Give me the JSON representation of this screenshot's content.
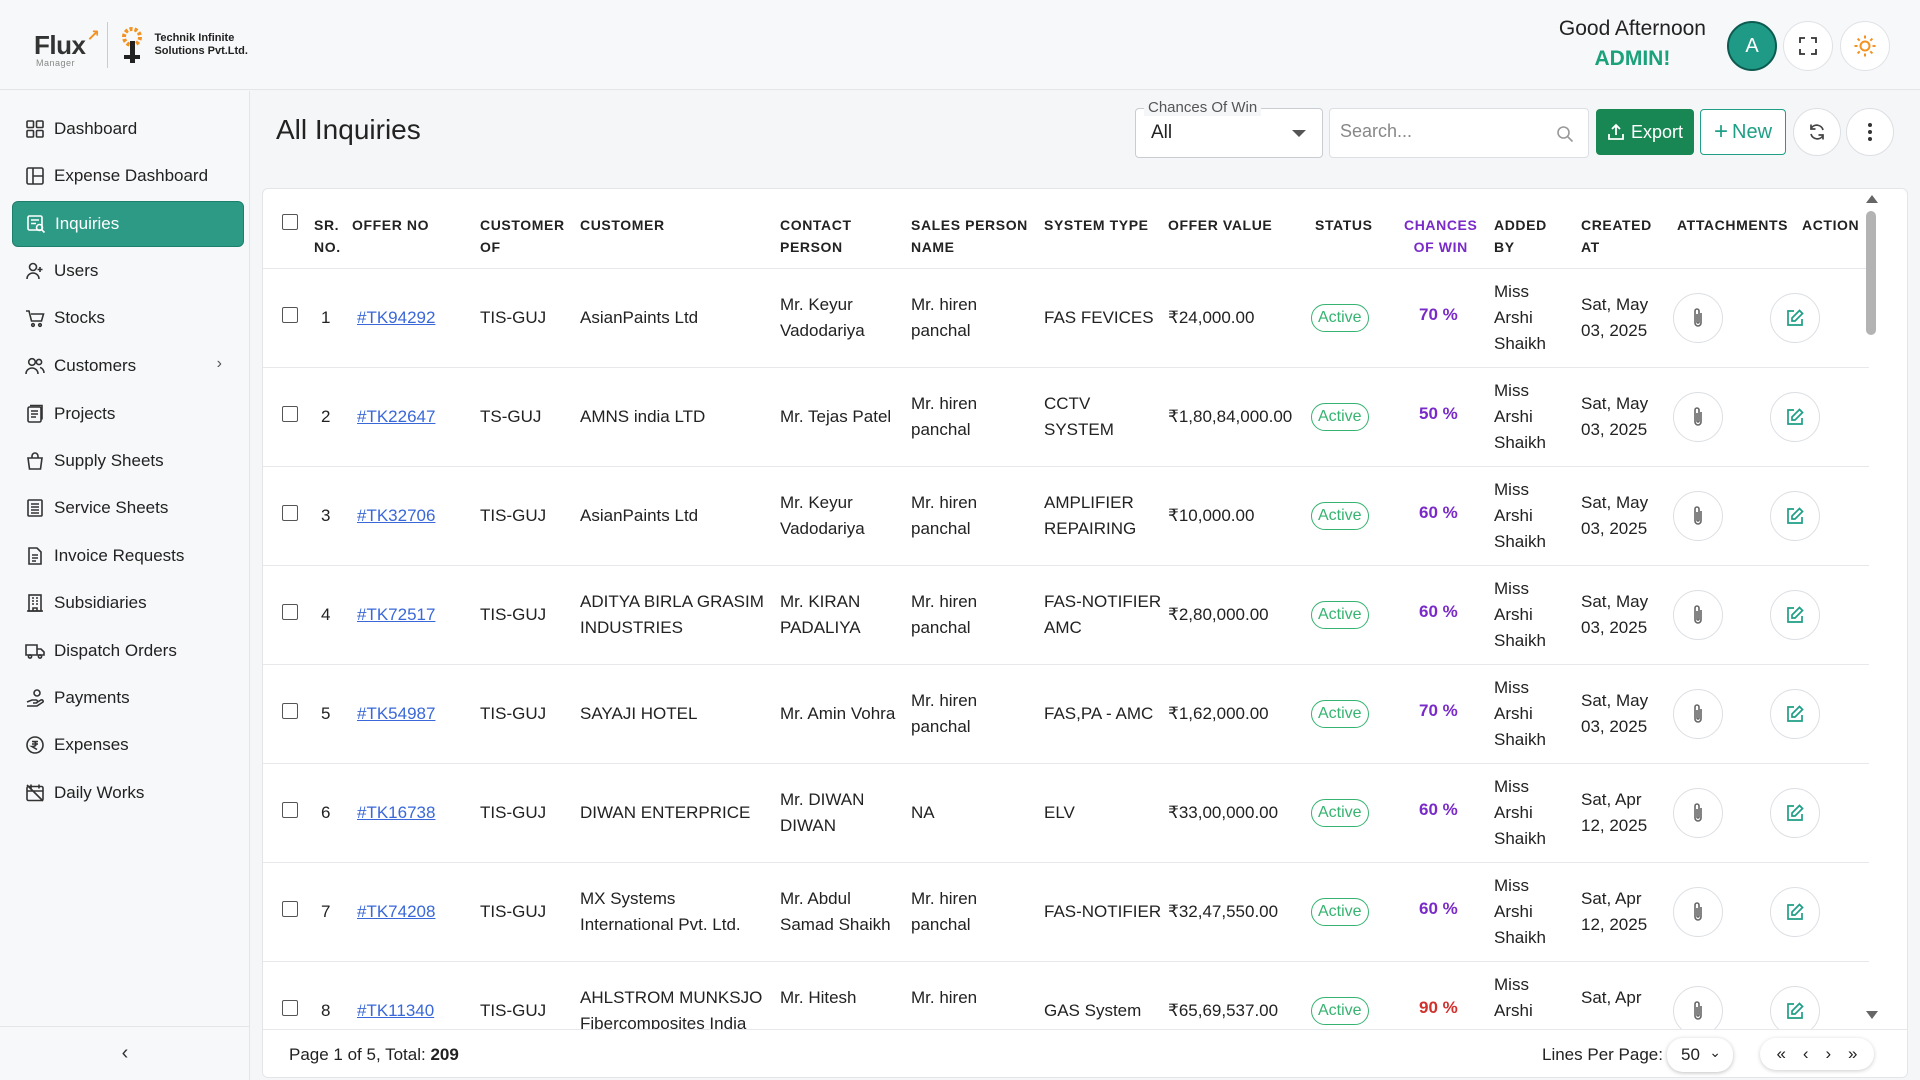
{
  "brand": {
    "app_name": "Flux",
    "app_sub": "Manager",
    "company_line1": "Technik Infinite",
    "company_line2": "Solutions Pvt.Ltd."
  },
  "header": {
    "greeting": "Good Afternoon",
    "user_role": "ADMIN!",
    "avatar_letter": "A"
  },
  "sidebar": {
    "items": [
      {
        "label": "Dashboard",
        "icon": "dashboard-icon"
      },
      {
        "label": "Expense Dashboard",
        "icon": "expense-dashboard-icon"
      },
      {
        "label": "Inquiries",
        "icon": "inquiries-icon"
      },
      {
        "label": "Users",
        "icon": "users-icon"
      },
      {
        "label": "Stocks",
        "icon": "stocks-icon"
      },
      {
        "label": "Customers",
        "icon": "customers-icon"
      },
      {
        "label": "Projects",
        "icon": "projects-icon"
      },
      {
        "label": "Supply Sheets",
        "icon": "supply-sheets-icon"
      },
      {
        "label": "Service Sheets",
        "icon": "service-sheets-icon"
      },
      {
        "label": "Invoice Requests",
        "icon": "invoice-requests-icon"
      },
      {
        "label": "Subsidiaries",
        "icon": "subsidiaries-icon"
      },
      {
        "label": "Dispatch Orders",
        "icon": "dispatch-orders-icon"
      },
      {
        "label": "Payments",
        "icon": "payments-icon"
      },
      {
        "label": "Expenses",
        "icon": "expenses-icon"
      },
      {
        "label": "Daily Works",
        "icon": "daily-works-icon"
      }
    ],
    "active": "Inquiries"
  },
  "main": {
    "title": "All Inquiries",
    "filter_label": "Chances Of Win",
    "filter_value": "All",
    "search_placeholder": "Search...",
    "export_label": "Export",
    "new_label": "New"
  },
  "table": {
    "headers": {
      "sr": [
        "SR.",
        "NO."
      ],
      "offer_no": [
        "OFFER NO",
        ""
      ],
      "customer_of": [
        "CUSTOMER",
        "OF"
      ],
      "customer": [
        "CUSTOMER",
        ""
      ],
      "contact": [
        "CONTACT",
        "PERSON"
      ],
      "sales": [
        "SALES PERSON",
        "NAME"
      ],
      "system": [
        "SYSTEM TYPE",
        ""
      ],
      "value": [
        "OFFER VALUE",
        ""
      ],
      "status": [
        "STATUS",
        ""
      ],
      "chances": [
        "CHANCES",
        "OF WIN"
      ],
      "added": [
        "ADDED",
        "BY"
      ],
      "created": [
        "CREATED",
        "AT"
      ],
      "attachments": [
        "ATTACHMENTS",
        ""
      ],
      "action": [
        "ACTION",
        ""
      ]
    },
    "rows": [
      {
        "sr": "1",
        "offer_no": "#TK94292",
        "customer_of": "TIS-GUJ",
        "customer": [
          "AsianPaints Ltd"
        ],
        "contact": [
          "Mr. Keyur",
          "Vadodariya"
        ],
        "sales": [
          "Mr. hiren",
          "panchal"
        ],
        "system": [
          "FAS FEVICES"
        ],
        "value": "₹24,000.00",
        "status": "Active",
        "chances": "70 %",
        "added": [
          "Miss",
          "Arshi",
          "Shaikh"
        ],
        "created": [
          "Sat, May",
          "03, 2025"
        ]
      },
      {
        "sr": "2",
        "offer_no": "#TK22647",
        "customer_of": "TS-GUJ",
        "customer": [
          "AMNS india LTD"
        ],
        "contact": [
          "Mr. Tejas Patel"
        ],
        "sales": [
          "Mr. hiren",
          "panchal"
        ],
        "system": [
          "CCTV",
          "SYSTEM"
        ],
        "value": "₹1,80,84,000.00",
        "status": "Active",
        "chances": "50 %",
        "added": [
          "Miss",
          "Arshi",
          "Shaikh"
        ],
        "created": [
          "Sat, May",
          "03, 2025"
        ]
      },
      {
        "sr": "3",
        "offer_no": "#TK32706",
        "customer_of": "TIS-GUJ",
        "customer": [
          "AsianPaints Ltd"
        ],
        "contact": [
          "Mr. Keyur",
          "Vadodariya"
        ],
        "sales": [
          "Mr. hiren",
          "panchal"
        ],
        "system": [
          "AMPLIFIER",
          "REPAIRING"
        ],
        "value": "₹10,000.00",
        "status": "Active",
        "chances": "60 %",
        "added": [
          "Miss",
          "Arshi",
          "Shaikh"
        ],
        "created": [
          "Sat, May",
          "03, 2025"
        ]
      },
      {
        "sr": "4",
        "offer_no": "#TK72517",
        "customer_of": "TIS-GUJ",
        "customer": [
          "ADITYA BIRLA GRASIM",
          "INDUSTRIES"
        ],
        "contact": [
          "Mr. KIRAN",
          "PADALIYA"
        ],
        "sales": [
          "Mr. hiren",
          "panchal"
        ],
        "system": [
          "FAS-NOTIFIER",
          "AMC"
        ],
        "value": "₹2,80,000.00",
        "status": "Active",
        "chances": "60 %",
        "added": [
          "Miss",
          "Arshi",
          "Shaikh"
        ],
        "created": [
          "Sat, May",
          "03, 2025"
        ]
      },
      {
        "sr": "5",
        "offer_no": "#TK54987",
        "customer_of": "TIS-GUJ",
        "customer": [
          "SAYAJI HOTEL"
        ],
        "contact": [
          "Mr. Amin Vohra"
        ],
        "sales": [
          "Mr. hiren",
          "panchal"
        ],
        "system": [
          "FAS,PA - AMC"
        ],
        "value": "₹1,62,000.00",
        "status": "Active",
        "chances": "70 %",
        "added": [
          "Miss",
          "Arshi",
          "Shaikh"
        ],
        "created": [
          "Sat, May",
          "03, 2025"
        ]
      },
      {
        "sr": "6",
        "offer_no": "#TK16738",
        "customer_of": "TIS-GUJ",
        "customer": [
          "DIWAN ENTERPRICE"
        ],
        "contact": [
          "Mr. DIWAN",
          "DIWAN"
        ],
        "sales": [
          "NA"
        ],
        "system": [
          "ELV"
        ],
        "value": "₹33,00,000.00",
        "status": "Active",
        "chances": "60 %",
        "added": [
          "Miss",
          "Arshi",
          "Shaikh"
        ],
        "created": [
          "Sat, Apr",
          "12, 2025"
        ]
      },
      {
        "sr": "7",
        "offer_no": "#TK74208",
        "customer_of": "TIS-GUJ",
        "customer": [
          "MX Systems",
          "International Pvt. Ltd."
        ],
        "contact": [
          "Mr. Abdul",
          "Samad Shaikh"
        ],
        "sales": [
          "Mr. hiren",
          "panchal"
        ],
        "system": [
          "FAS-NOTIFIER"
        ],
        "value": "₹32,47,550.00",
        "status": "Active",
        "chances": "60 %",
        "added": [
          "Miss",
          "Arshi",
          "Shaikh"
        ],
        "created": [
          "Sat, Apr",
          "12, 2025"
        ]
      },
      {
        "sr": "8",
        "offer_no": "#TK11340",
        "customer_of": "TIS-GUJ",
        "customer": [
          "AHLSTROM MUNKSJO",
          "Fibercomposites India"
        ],
        "contact": [
          "Mr. Hitesh",
          ""
        ],
        "sales": [
          "Mr. hiren",
          ""
        ],
        "system": [
          "GAS System"
        ],
        "value": "₹65,69,537.00",
        "status": "Active",
        "chances": "90 %",
        "added": [
          "Miss",
          "Arshi",
          ""
        ],
        "created": [
          "Sat, Apr",
          ""
        ]
      }
    ]
  },
  "footer": {
    "page_text": "Page 1 of 5, Total: ",
    "total": "209",
    "lines_label": "Lines Per Page:",
    "lines_value": "50"
  },
  "colors": {
    "accent": "#2c9a85",
    "export_green": "#198754",
    "status_green": "#36b370",
    "chances_purple": "#7a2ac8",
    "chances_red": "#d0312d"
  }
}
